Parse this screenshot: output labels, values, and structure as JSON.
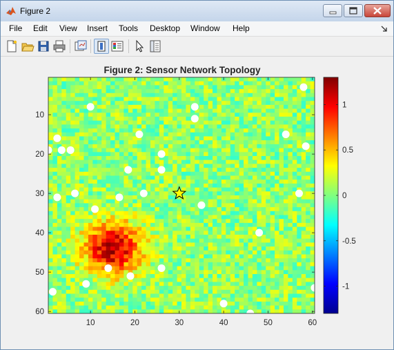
{
  "window": {
    "title": "Figure 2",
    "icon": "matlab-logo-icon"
  },
  "menubar": {
    "items": [
      "File",
      "Edit",
      "View",
      "Insert",
      "Tools",
      "Desktop",
      "Window",
      "Help"
    ],
    "dock_icon": "dock-arrow-icon"
  },
  "toolbar": {
    "icons": [
      "new-figure-icon",
      "open-file-icon",
      "save-icon",
      "print-icon",
      "link-plot-icon",
      "dock-figure-icon",
      "insert-colorbar-icon",
      "pointer-icon",
      "property-editor-icon"
    ]
  },
  "chart_data": {
    "type": "heatmap",
    "title": "Figure 2: Sensor Network Topology",
    "xlim": [
      0.5,
      60.5
    ],
    "ylim": [
      0.5,
      60.5
    ],
    "y_reversed": true,
    "xticks": [
      10,
      20,
      30,
      40,
      50,
      60
    ],
    "yticks": [
      10,
      20,
      30,
      40,
      50,
      60
    ],
    "colormap": "jet",
    "clim": [
      -1.3,
      1.3
    ],
    "colorbar_ticks": [
      1,
      0.5,
      0,
      -0.5,
      -1
    ],
    "colorbar_tick_labels": [
      "1",
      "0.5",
      "0",
      "-0.5",
      "-1"
    ],
    "field": {
      "background_level": 0.05,
      "noise_amplitude": 0.25,
      "hotspot": {
        "x": 15,
        "y": 44,
        "peak": 1.1,
        "radius": 6.5
      }
    },
    "sensors": [
      {
        "x": 10,
        "y": 8
      },
      {
        "x": 2.5,
        "y": 16
      },
      {
        "x": 0.5,
        "y": 19
      },
      {
        "x": 3.5,
        "y": 19
      },
      {
        "x": 5.5,
        "y": 19
      },
      {
        "x": 2.5,
        "y": 31
      },
      {
        "x": 6.5,
        "y": 30
      },
      {
        "x": 11,
        "y": 34
      },
      {
        "x": 16.5,
        "y": 31
      },
      {
        "x": 18.5,
        "y": 24
      },
      {
        "x": 21,
        "y": 15
      },
      {
        "x": 22,
        "y": 30
      },
      {
        "x": 26,
        "y": 20
      },
      {
        "x": 26,
        "y": 24
      },
      {
        "x": 33.5,
        "y": 8
      },
      {
        "x": 33.5,
        "y": 11
      },
      {
        "x": 35,
        "y": 33
      },
      {
        "x": 58,
        "y": 3
      },
      {
        "x": 54,
        "y": 15
      },
      {
        "x": 58.5,
        "y": 18
      },
      {
        "x": 57,
        "y": 30
      },
      {
        "x": 48,
        "y": 40
      },
      {
        "x": 14,
        "y": 49
      },
      {
        "x": 9,
        "y": 53
      },
      {
        "x": 19,
        "y": 51
      },
      {
        "x": 26,
        "y": 49
      },
      {
        "x": 1.5,
        "y": 55
      },
      {
        "x": 40,
        "y": 58
      },
      {
        "x": 46,
        "y": 60.5
      },
      {
        "x": 60.5,
        "y": 54
      }
    ],
    "base_station": {
      "x": 30,
      "y": 30,
      "marker": "star"
    },
    "colors": {
      "sensor": "#ffffff",
      "star_fill": "#ffff00",
      "star_edge": "#000000"
    }
  }
}
